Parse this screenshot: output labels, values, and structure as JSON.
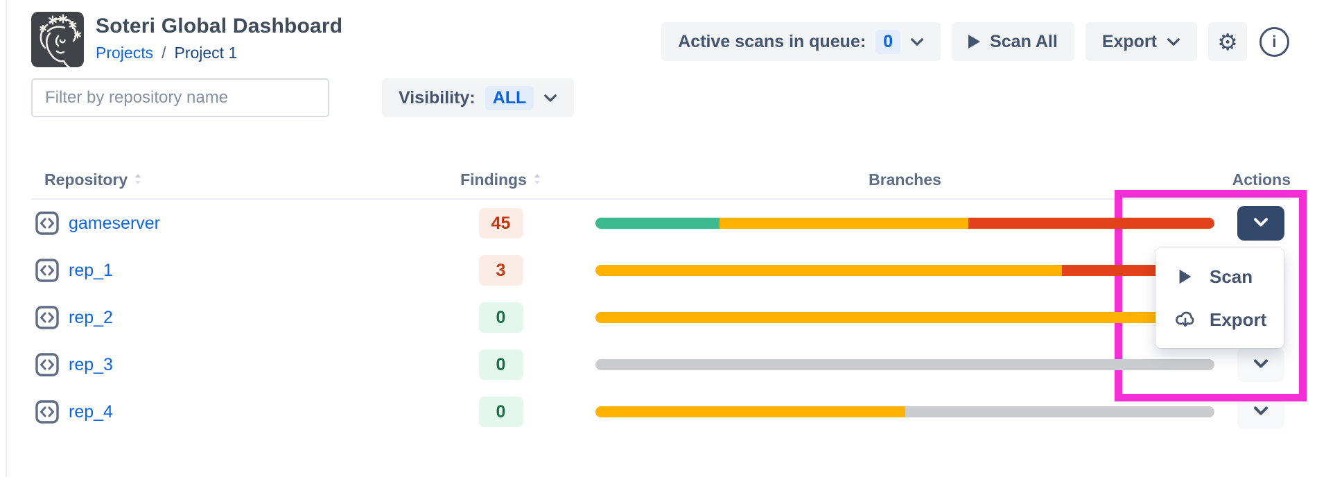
{
  "header": {
    "title": "Soteri Global Dashboard",
    "breadcrumb": {
      "projects": "Projects",
      "separator": "/",
      "current": "Project 1"
    },
    "queue_label": "Active scans in queue:",
    "queue_count": "0",
    "scan_all_label": "Scan All",
    "export_label": "Export",
    "icons": [
      "soteri-logo",
      "chevron-down-icon",
      "play-icon",
      "gear-icon",
      "info-icon"
    ]
  },
  "filter": {
    "placeholder": "Filter by repository name",
    "visibility_label": "Visibility:",
    "visibility_value": "ALL"
  },
  "table": {
    "columns": {
      "repository": "Repository",
      "findings": "Findings",
      "branches": "Branches",
      "actions": "Actions"
    },
    "rows": [
      {
        "name": "gameserver",
        "findings": "45",
        "findings_level": "red",
        "segments": [
          {
            "color": "green",
            "pct": 20.0
          },
          {
            "color": "yellow",
            "pct": 40.3
          },
          {
            "color": "red",
            "pct": 39.7
          }
        ],
        "action": "dark"
      },
      {
        "name": "rep_1",
        "findings": "3",
        "findings_level": "red",
        "segments": [
          {
            "color": "yellow",
            "pct": 75.4
          },
          {
            "color": "red",
            "pct": 24.6
          }
        ],
        "action": "light"
      },
      {
        "name": "rep_2",
        "findings": "0",
        "findings_level": "green",
        "segments": [
          {
            "color": "yellow",
            "pct": 100
          }
        ],
        "action": "light"
      },
      {
        "name": "rep_3",
        "findings": "0",
        "findings_level": "green",
        "segments": [
          {
            "color": "gray",
            "pct": 100
          }
        ],
        "action": "light"
      },
      {
        "name": "rep_4",
        "findings": "0",
        "findings_level": "green",
        "segments": [
          {
            "color": "yellow",
            "pct": 50
          },
          {
            "color": "gray",
            "pct": 50
          }
        ],
        "action": "light"
      }
    ]
  },
  "menu": {
    "items": [
      {
        "icon": "play",
        "label": "Scan"
      },
      {
        "icon": "cloud-download",
        "label": "Export"
      }
    ]
  },
  "colors": {
    "green": "#3CBA8F",
    "yellow": "#FFB200",
    "red": "#E34119",
    "gray": "#CBCCCE",
    "accent_blue": "#0C66E4",
    "badge_blue_bg": "#E2ECFC",
    "annotation_magenta": "#F32ED4",
    "dark_button": "#33496B"
  }
}
